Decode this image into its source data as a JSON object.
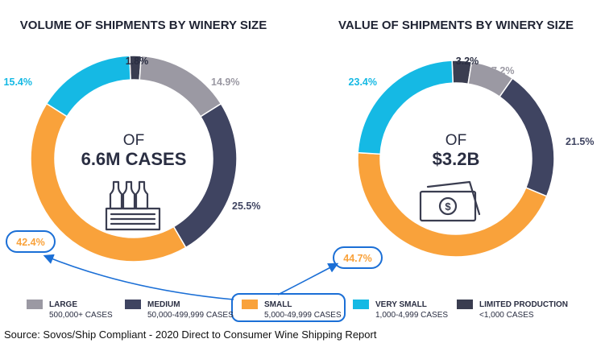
{
  "chart_data": [
    {
      "type": "pie",
      "title": "VOLUME OF SHIPMENTS BY WINERY SIZE",
      "center_prefix": "OF",
      "center_value": "6.6M CASES",
      "center_icon": "bottle-crate-icon",
      "categories": [
        "LARGE",
        "MEDIUM",
        "SMALL",
        "VERY SMALL",
        "LIMITED PRODUCTION"
      ],
      "values": [
        14.9,
        25.5,
        42.4,
        15.4,
        1.8
      ],
      "labels": [
        "14.9%",
        "25.5%",
        "42.4%",
        "15.4%",
        "1.8%"
      ],
      "highlight": "SMALL"
    },
    {
      "type": "pie",
      "title": "VALUE OF SHIPMENTS BY WINERY SIZE",
      "center_prefix": "OF",
      "center_value": "$3.2B",
      "center_icon": "money-icon",
      "categories": [
        "LARGE",
        "MEDIUM",
        "SMALL",
        "VERY SMALL",
        "LIMITED PRODUCTION"
      ],
      "values": [
        7.2,
        21.5,
        44.7,
        23.4,
        3.2
      ],
      "labels": [
        "7.2%",
        "21.5%",
        "44.7%",
        "23.4%",
        "3.2%"
      ],
      "highlight": "SMALL"
    }
  ],
  "legend": [
    {
      "name": "LARGE",
      "desc": "500,000+ CASES",
      "color": "#9b99a3"
    },
    {
      "name": "MEDIUM",
      "desc": "50,000-499,999 CASES",
      "color": "#3f4461"
    },
    {
      "name": "SMALL",
      "desc": "5,000-49,999 CASES",
      "color": "#f9a23b"
    },
    {
      "name": "VERY SMALL",
      "desc": "1,000-4,999 CASES",
      "color": "#15b9e4"
    },
    {
      "name": "LIMITED PRODUCTION",
      "desc": "<1,000 CASES",
      "color": "#3a3d50"
    }
  ],
  "colors": {
    "LARGE": "#9b99a3",
    "MEDIUM": "#3f4461",
    "SMALL": "#f9a23b",
    "VERY SMALL": "#15b9e4",
    "LIMITED PRODUCTION": "#3a3d50",
    "highlight_outline": "#1b6fd6"
  },
  "source": "Source: Sovos/Ship Compliant - 2020 Direct to Consumer Wine Shipping Report"
}
